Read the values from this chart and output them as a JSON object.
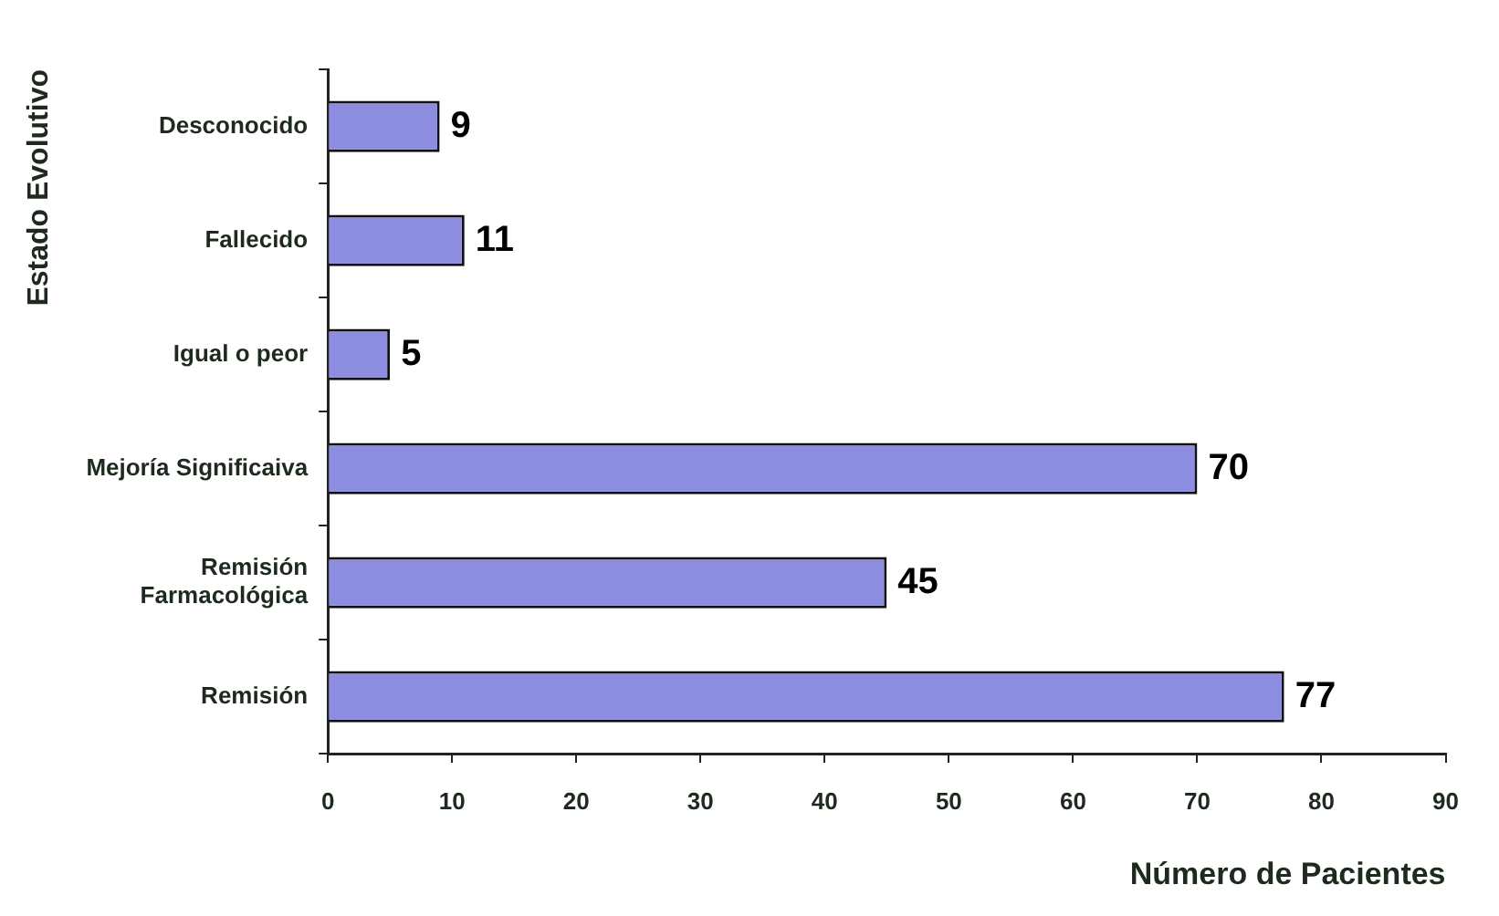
{
  "chart_data": {
    "type": "bar",
    "orientation": "horizontal",
    "xlabel": "Número de Pacientes",
    "ylabel": "Estado Evolutivo",
    "categories": [
      "Desconocido",
      "Fallecido",
      "Igual o peor",
      "Mejoría Significaiva",
      "Remisión Farmacológica",
      "Remisión"
    ],
    "values": [
      9,
      11,
      5,
      70,
      45,
      77
    ],
    "color": "#8c8ce0",
    "xlim": [
      0,
      90
    ],
    "xticks": [
      0,
      10,
      20,
      30,
      40,
      50,
      60,
      70,
      80,
      90
    ],
    "grid": false,
    "legend": false,
    "data_labels": true
  }
}
